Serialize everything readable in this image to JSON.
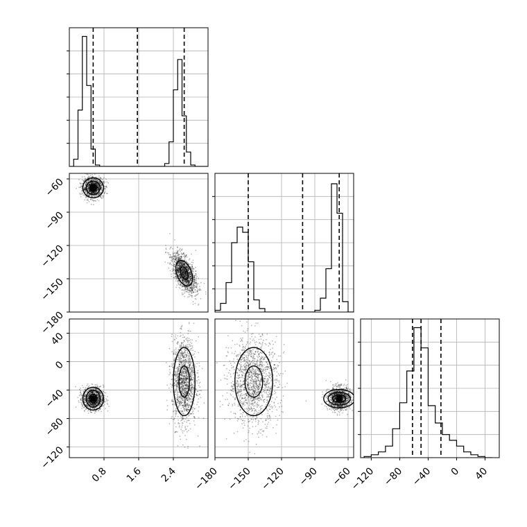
{
  "chart_data": {
    "type": "corner",
    "grid": true,
    "quantile_lines": "dashed",
    "parameters": [
      {
        "range": [
          0.0,
          3.2
        ],
        "ticks": [
          0.8,
          1.6,
          2.4
        ],
        "tick_labels": [
          "0.8",
          "1.6",
          "2.4"
        ]
      },
      {
        "range": [
          -180,
          -55
        ],
        "ticks": [
          -180,
          -150,
          -120,
          -90,
          -60
        ],
        "tick_labels": [
          "−180",
          "−150",
          "−120",
          "−90",
          "−60"
        ]
      },
      {
        "range": [
          -135,
          60
        ],
        "ticks": [
          -120,
          -80,
          -40,
          0,
          40
        ],
        "tick_labels": [
          "−120",
          "−80",
          "−40",
          "0",
          "40"
        ]
      }
    ],
    "histograms": [
      {
        "parameter": 0,
        "edges": [
          0.0,
          0.1,
          0.2,
          0.3,
          0.4,
          0.5,
          0.6,
          0.7,
          0.8,
          0.9,
          1.0,
          1.1,
          1.2,
          1.3,
          1.4,
          1.5,
          1.6,
          1.7,
          1.8,
          1.9,
          2.0,
          2.1,
          2.2,
          2.3,
          2.4,
          2.5,
          2.6,
          2.7,
          2.8,
          2.9,
          3.0,
          3.1,
          3.2
        ],
        "counts": [
          0,
          25,
          195,
          450,
          280,
          60,
          5,
          0,
          0,
          0,
          0,
          0,
          0,
          0,
          0,
          0,
          0,
          0,
          0,
          0,
          0,
          0,
          10,
          85,
          265,
          370,
          175,
          50,
          5,
          0,
          0,
          0
        ],
        "ylim": [
          0,
          480
        ],
        "quantiles": [
          0.55,
          1.57,
          2.65
        ]
      },
      {
        "parameter": 1,
        "edges": [
          -180,
          -175,
          -170,
          -165,
          -160,
          -155,
          -150,
          -145,
          -140,
          -135,
          -130,
          -125,
          -120,
          -115,
          -110,
          -105,
          -100,
          -95,
          -90,
          -85,
          -80,
          -75,
          -70,
          -65,
          -60,
          -55
        ],
        "counts": [
          5,
          25,
          85,
          200,
          245,
          230,
          145,
          35,
          10,
          0,
          0,
          0,
          0,
          0,
          0,
          0,
          0,
          0,
          5,
          40,
          125,
          370,
          285,
          30,
          0
        ],
        "ylim": [
          0,
          400
        ],
        "quantiles": [
          -150,
          -101,
          -68
        ]
      },
      {
        "parameter": 2,
        "edges": [
          -130,
          -120,
          -110,
          -100,
          -90,
          -80,
          -70,
          -60,
          -50,
          -40,
          -30,
          -20,
          -10,
          0,
          10,
          20,
          30,
          40,
          50
        ],
        "counts": [
          2,
          5,
          10,
          20,
          50,
          95,
          150,
          225,
          190,
          90,
          60,
          40,
          30,
          20,
          10,
          5,
          2,
          0
        ],
        "ylim": [
          0,
          240
        ],
        "quantiles": [
          -62,
          -50,
          -22
        ]
      }
    ],
    "contour_panels": [
      {
        "x_param": 0,
        "y_param": 1,
        "clusters": [
          {
            "center": [
              0.55,
              -68
            ],
            "sd": [
              0.12,
              4.5
            ],
            "rho": 0.0,
            "n": 1100,
            "levels": [
              [
                0.08,
                3
              ],
              [
                0.16,
                6
              ],
              [
                0.24,
                9
              ]
            ],
            "peak_box": [
              0.06,
              2.5
            ]
          },
          {
            "center": [
              2.65,
              -145
            ],
            "sd": [
              0.14,
              9
            ],
            "rho": -0.6,
            "n": 1400,
            "levels": [
              [
                0.08,
                6
              ],
              [
                0.17,
                12
              ]
            ]
          }
        ]
      },
      {
        "x_param": 0,
        "y_param": 2,
        "clusters": [
          {
            "center": [
              0.55,
              -52
            ],
            "sd": [
              0.12,
              8
            ],
            "rho": 0.0,
            "n": 1100,
            "levels": [
              [
                0.08,
                6
              ],
              [
                0.16,
                12
              ],
              [
                0.24,
                16
              ]
            ],
            "peak_box": [
              0.06,
              4
            ]
          },
          {
            "center": [
              2.65,
              -28
            ],
            "sd": [
              0.14,
              30
            ],
            "rho": 0.0,
            "n": 1400,
            "levels": [
              [
                0.12,
                22
              ],
              [
                0.25,
                48
              ]
            ]
          }
        ]
      },
      {
        "x_param": 1,
        "y_param": 2,
        "clusters": [
          {
            "center": [
              -145,
              -28
            ],
            "sd": [
              11,
              30
            ],
            "rho": 0.0,
            "n": 1400,
            "levels": [
              [
                8,
                22
              ],
              [
                17,
                48
              ]
            ]
          },
          {
            "center": [
              -68,
              -52
            ],
            "sd": [
              5,
              8
            ],
            "rho": 0.0,
            "n": 1100,
            "levels": [
              [
                6,
                5
              ],
              [
                10,
                9
              ],
              [
                14,
                13
              ]
            ],
            "peak_box": [
              2.5,
              4
            ]
          }
        ]
      }
    ]
  }
}
